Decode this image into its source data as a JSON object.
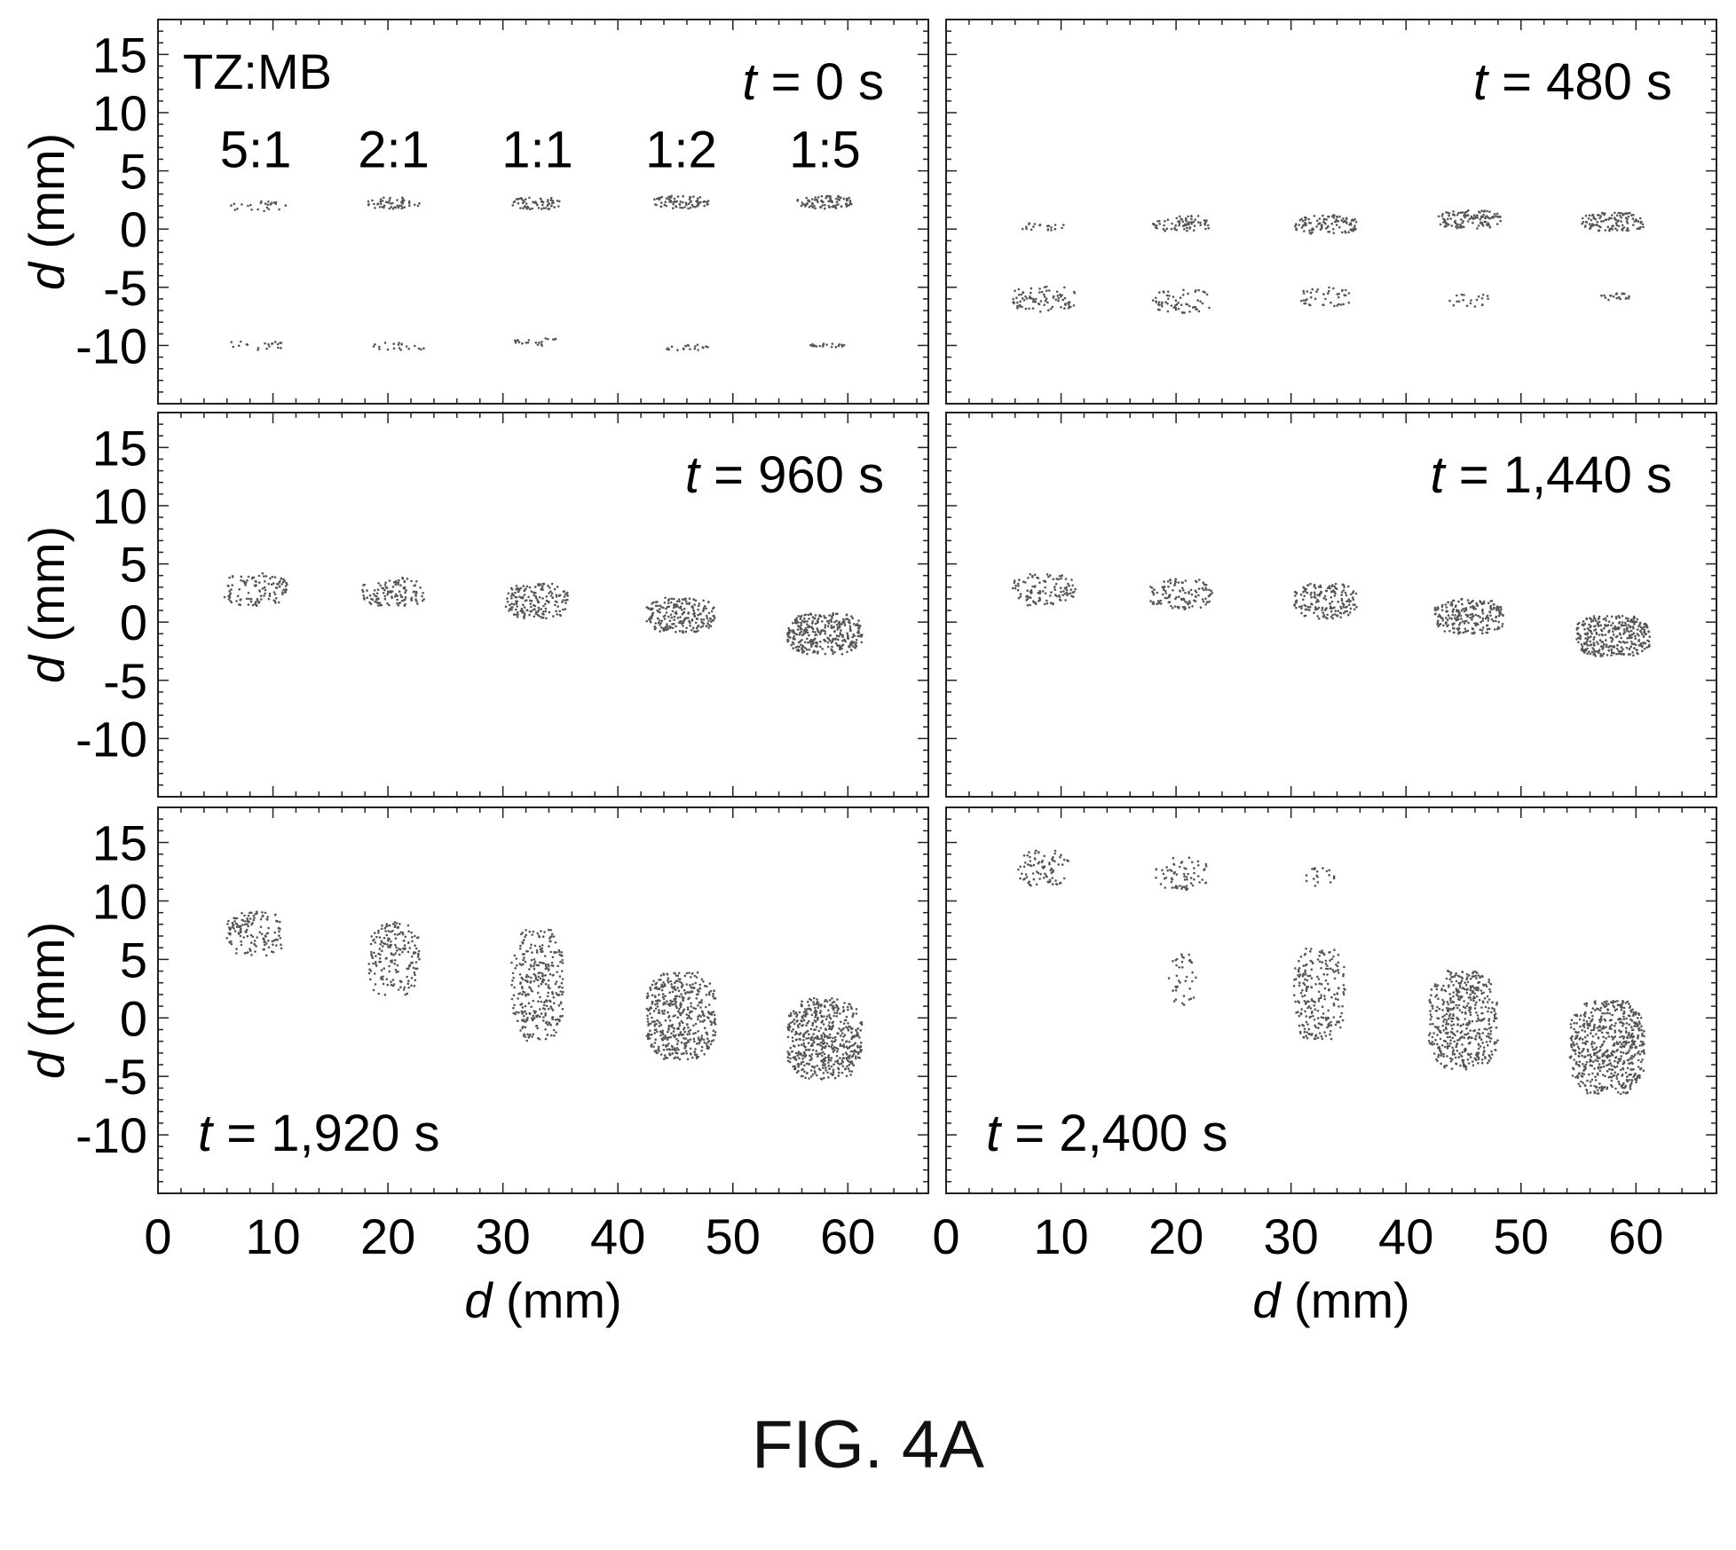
{
  "figure": {
    "caption": "FIG. 4A",
    "legend_title": "TZ:MB",
    "ratio_labels": [
      "5:1",
      "2:1",
      "1:1",
      "1:2",
      "1:5"
    ],
    "axis": {
      "x_label_var": "d",
      "x_label_unit": " (mm)",
      "y_label_var": "d",
      "y_label_unit": " (mm)",
      "xlim": [
        0,
        67
      ],
      "ylim": [
        -15,
        18
      ],
      "x_ticks": [
        0,
        10,
        20,
        30,
        40,
        50,
        60
      ],
      "y_ticks": [
        15,
        10,
        5,
        0,
        -5,
        -10
      ],
      "tick_labels_x": [
        "0",
        "10",
        "20",
        "30",
        "40",
        "50",
        "60"
      ],
      "tick_labels_y": [
        "15",
        "10",
        "5",
        "0",
        "-5",
        "-10"
      ]
    },
    "colors": {
      "ink": "#000000",
      "dots": "#555555",
      "frame": "#222222"
    }
  },
  "chart_data": [
    {
      "type": "scatter",
      "time_prefix": "t",
      "time_value": " = 0 s",
      "blobs": [
        {
          "x": 8.5,
          "y": 2.0,
          "w": 5.5,
          "h": 0.9,
          "density": 0.25
        },
        {
          "x": 20.5,
          "y": 2.2,
          "w": 4.5,
          "h": 1.0,
          "density": 0.55
        },
        {
          "x": 33.0,
          "y": 2.2,
          "w": 4.5,
          "h": 1.0,
          "density": 0.65
        },
        {
          "x": 45.5,
          "y": 2.3,
          "w": 4.8,
          "h": 1.1,
          "density": 0.7
        },
        {
          "x": 58.0,
          "y": 2.3,
          "w": 4.8,
          "h": 1.1,
          "density": 0.8
        },
        {
          "x": 8.5,
          "y": -10.0,
          "w": 5.0,
          "h": 0.8,
          "density": 0.2
        },
        {
          "x": 21.0,
          "y": -10.1,
          "w": 4.5,
          "h": 0.7,
          "density": 0.2
        },
        {
          "x": 33.0,
          "y": -9.7,
          "w": 4.0,
          "h": 0.7,
          "density": 0.18
        },
        {
          "x": 46.0,
          "y": -10.2,
          "w": 4.0,
          "h": 0.5,
          "density": 0.15
        },
        {
          "x": 58.0,
          "y": -10.0,
          "w": 3.5,
          "h": 0.3,
          "density": 0.1
        }
      ]
    },
    {
      "type": "scatter",
      "time_prefix": "t",
      "time_value": " = 480 s",
      "blobs": [
        {
          "x": 8.5,
          "y": 0.2,
          "w": 4.0,
          "h": 0.7,
          "density": 0.2
        },
        {
          "x": 20.5,
          "y": 0.5,
          "w": 5.0,
          "h": 1.4,
          "density": 0.5
        },
        {
          "x": 33.0,
          "y": 0.4,
          "w": 5.5,
          "h": 1.6,
          "density": 0.6
        },
        {
          "x": 45.5,
          "y": 0.8,
          "w": 5.5,
          "h": 1.6,
          "density": 0.65
        },
        {
          "x": 58.0,
          "y": 0.6,
          "w": 5.5,
          "h": 1.6,
          "density": 0.65
        },
        {
          "x": 8.5,
          "y": -6.0,
          "w": 5.5,
          "h": 2.2,
          "density": 0.35
        },
        {
          "x": 20.5,
          "y": -6.2,
          "w": 5.0,
          "h": 2.0,
          "density": 0.3
        },
        {
          "x": 33.0,
          "y": -5.8,
          "w": 4.5,
          "h": 1.6,
          "density": 0.28
        },
        {
          "x": 45.5,
          "y": -6.2,
          "w": 4.0,
          "h": 1.2,
          "density": 0.2
        },
        {
          "x": 58.0,
          "y": -5.8,
          "w": 3.0,
          "h": 0.6,
          "density": 0.12
        }
      ]
    },
    {
      "type": "scatter",
      "time_prefix": "t",
      "time_value": " = 960 s",
      "blobs": [
        {
          "x": 8.5,
          "y": 2.8,
          "w": 5.5,
          "h": 2.8,
          "density": 0.35
        },
        {
          "x": 20.5,
          "y": 2.6,
          "w": 5.5,
          "h": 2.5,
          "density": 0.4
        },
        {
          "x": 33.0,
          "y": 1.8,
          "w": 5.5,
          "h": 3.0,
          "density": 0.5
        },
        {
          "x": 45.5,
          "y": 0.6,
          "w": 6.0,
          "h": 3.0,
          "density": 0.6
        },
        {
          "x": 58.0,
          "y": -1.0,
          "w": 6.5,
          "h": 3.5,
          "density": 0.7
        }
      ]
    },
    {
      "type": "scatter",
      "time_prefix": "t",
      "time_value": " = 1,440 s",
      "blobs": [
        {
          "x": 8.5,
          "y": 2.8,
          "w": 5.5,
          "h": 2.8,
          "density": 0.35
        },
        {
          "x": 20.5,
          "y": 2.4,
          "w": 5.5,
          "h": 2.6,
          "density": 0.4
        },
        {
          "x": 33.0,
          "y": 1.8,
          "w": 5.5,
          "h": 3.0,
          "density": 0.5
        },
        {
          "x": 45.5,
          "y": 0.5,
          "w": 6.0,
          "h": 3.0,
          "density": 0.6
        },
        {
          "x": 58.0,
          "y": -1.2,
          "w": 6.5,
          "h": 3.5,
          "density": 0.7
        }
      ]
    },
    {
      "type": "scatter",
      "time_prefix": "t",
      "time_value": " = 1,920 s",
      "time_position": "bottom-left",
      "blobs": [
        {
          "x": 8.5,
          "y": 7.2,
          "w": 5.0,
          "h": 3.8,
          "density": 0.35
        },
        {
          "x": 20.5,
          "y": 5.0,
          "w": 4.5,
          "h": 6.5,
          "density": 0.3
        },
        {
          "x": 33.0,
          "y": 2.8,
          "w": 4.5,
          "h": 9.5,
          "density": 0.35
        },
        {
          "x": 45.5,
          "y": 0.2,
          "w": 6.0,
          "h": 7.5,
          "density": 0.5
        },
        {
          "x": 58.0,
          "y": -1.8,
          "w": 6.5,
          "h": 7.0,
          "density": 0.55
        }
      ]
    },
    {
      "type": "scatter",
      "time_prefix": "t",
      "time_value": " = 2,400 s",
      "time_position": "bottom-left",
      "blobs": [
        {
          "x": 8.5,
          "y": 12.8,
          "w": 4.5,
          "h": 3.0,
          "density": 0.3
        },
        {
          "x": 20.5,
          "y": 12.3,
          "w": 4.5,
          "h": 2.8,
          "density": 0.25
        },
        {
          "x": 32.5,
          "y": 12.0,
          "w": 2.5,
          "h": 1.6,
          "density": 0.15
        },
        {
          "x": 20.5,
          "y": 3.5,
          "w": 2.5,
          "h": 5.0,
          "density": 0.15
        },
        {
          "x": 32.5,
          "y": 2.0,
          "w": 4.5,
          "h": 8.0,
          "density": 0.3
        },
        {
          "x": 45.0,
          "y": -0.2,
          "w": 6.0,
          "h": 8.5,
          "density": 0.45
        },
        {
          "x": 57.5,
          "y": -2.5,
          "w": 6.5,
          "h": 8.0,
          "density": 0.55
        }
      ]
    }
  ]
}
